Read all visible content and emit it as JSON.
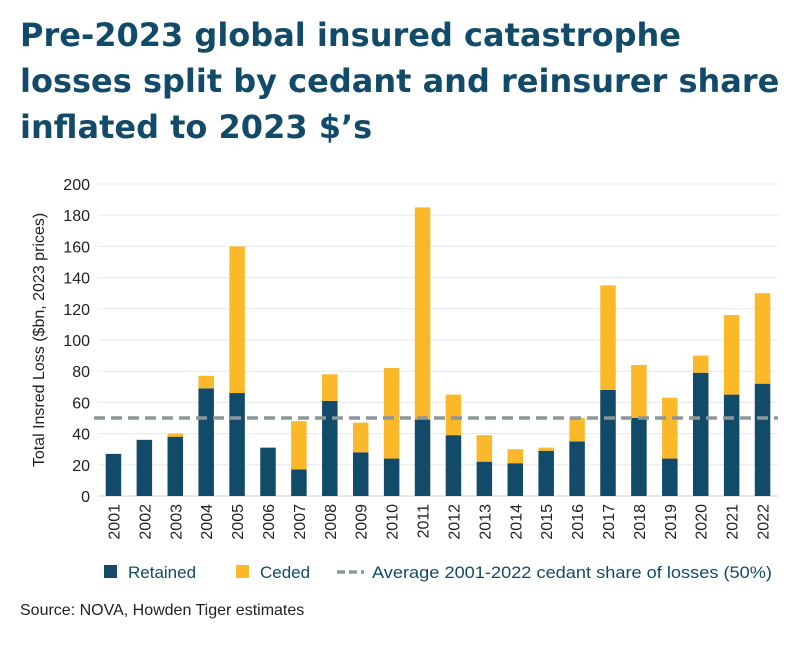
{
  "title_lines": [
    "Pre-2023 global insured catastrophe",
    "losses split by cedant and reinsurer share",
    "inflated to 2023 $’s"
  ],
  "source": "Source: NOVA, Howden Tiger estimates",
  "chart_data": {
    "type": "bar",
    "stacked": true,
    "categories": [
      "2001",
      "2002",
      "2003",
      "2004",
      "2005",
      "2006",
      "2007",
      "2008",
      "2009",
      "2010",
      "2011",
      "2012",
      "2013",
      "2014",
      "2015",
      "2016",
      "2017",
      "2018",
      "2019",
      "2020",
      "2021",
      "2022"
    ],
    "series": [
      {
        "name": "Retained",
        "color": "#124b69",
        "values": [
          27,
          36,
          38,
          69,
          66,
          31,
          17,
          61,
          28,
          24,
          49,
          39,
          22,
          21,
          29,
          35,
          68,
          50,
          24,
          79,
          65,
          72
        ]
      },
      {
        "name": "Ceded",
        "color": "#fbb829",
        "values": [
          0,
          0,
          2,
          8,
          94,
          0,
          31,
          17,
          19,
          58,
          136,
          26,
          17,
          9,
          2,
          15,
          67,
          34,
          39,
          11,
          51,
          58
        ]
      }
    ],
    "reference_line": {
      "name": "Average 2001-2022 cedant share of losses (50%)",
      "value": 50,
      "color": "#8c969b",
      "style": "dashed"
    },
    "ylabel": "Total Insred Loss ($bn, 2023 prices)",
    "xlabel": "",
    "ylim": [
      0,
      200
    ],
    "yticks": [
      0,
      20,
      40,
      60,
      80,
      100,
      120,
      140,
      160,
      180,
      200
    ],
    "grid": true,
    "legend": "bottom"
  }
}
